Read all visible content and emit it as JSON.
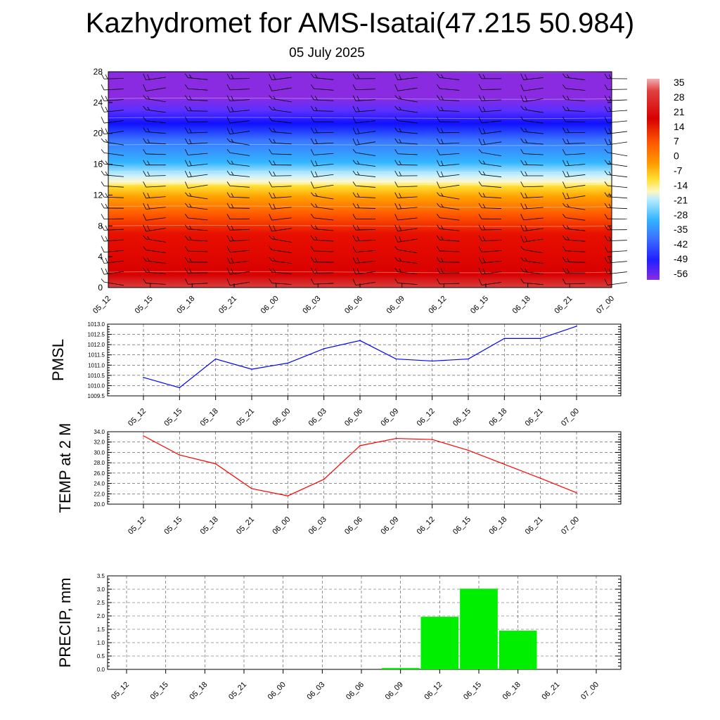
{
  "title": "Kazhydromet for AMS-Isatai(47.215 50.984)",
  "subtitle": "05 July 2025",
  "time_labels": [
    "05_12",
    "05_15",
    "05_18",
    "05_21",
    "06_00",
    "06_03",
    "06_06",
    "06_09",
    "06_12",
    "06_15",
    "06_18",
    "06_21",
    "07_00"
  ],
  "chart_data": [
    {
      "type": "heatmap",
      "id": "vertical-temperature",
      "x": [
        "05_12",
        "05_15",
        "05_18",
        "05_21",
        "06_00",
        "06_03",
        "06_06",
        "06_09",
        "06_12",
        "06_15",
        "06_18",
        "06_21",
        "07_00"
      ],
      "ylim": [
        0,
        28
      ],
      "yticks": [
        "0",
        "4",
        "8",
        "12",
        "16",
        "20",
        "24",
        "28"
      ],
      "colorbar_labels": [
        "35",
        "28",
        "21",
        "14",
        "7",
        "0",
        "-7",
        "-14",
        "-21",
        "-28",
        "-35",
        "-42",
        "-49",
        "-56"
      ],
      "colorbar_range": [
        -63,
        39
      ],
      "colors": {
        "hot": "#d40000",
        "orange": "#ff7a00",
        "yellow": "#ffe033",
        "cyan": "#33b5ff",
        "blue": "#2020ff",
        "violet": "#8a2be2"
      },
      "bands": [
        {
          "from": 0,
          "to": 2,
          "value": 33
        },
        {
          "from": 2,
          "to": 8,
          "value": 24
        },
        {
          "from": 8,
          "to": 10.5,
          "value": 12
        },
        {
          "from": 10.5,
          "to": 13.4,
          "value": 0
        },
        {
          "from": 13.4,
          "to": 15,
          "value": -16
        },
        {
          "from": 15,
          "to": 18.5,
          "value": -30
        },
        {
          "from": 18.5,
          "to": 22,
          "value": -48
        },
        {
          "from": 22,
          "to": 24.5,
          "value": -58
        },
        {
          "from": 24.5,
          "to": 28,
          "value": -63
        }
      ],
      "wind_barbs": true
    },
    {
      "type": "line",
      "id": "pmsl",
      "ylabel": "PMSL",
      "x": [
        "05_12",
        "05_15",
        "05_18",
        "05_21",
        "06_00",
        "06_03",
        "06_06",
        "06_09",
        "06_12",
        "06_15",
        "06_18",
        "06_21",
        "07_00"
      ],
      "values": [
        1010.4,
        1009.9,
        1011.3,
        1010.8,
        1011.1,
        1011.8,
        1012.2,
        1011.3,
        1011.2,
        1011.3,
        1012.3,
        1012.3,
        1012.9
      ],
      "ylim": [
        1009.5,
        1013.0
      ],
      "yticks": [
        "1009.5",
        "1010.0",
        "1010.5",
        "1011.0",
        "1011.5",
        "1012.0",
        "1012.5",
        "1013.0"
      ],
      "color": "#0000ff",
      "grid": true
    },
    {
      "type": "line",
      "id": "temp2m",
      "ylabel": "TEMP at 2 M",
      "x": [
        "05_12",
        "05_15",
        "05_18",
        "05_21",
        "06_00",
        "06_03",
        "06_06",
        "06_09",
        "06_12",
        "06_15",
        "06_18",
        "06_21",
        "07_00"
      ],
      "values": [
        33.2,
        29.5,
        27.8,
        23.0,
        21.6,
        24.8,
        31.3,
        32.7,
        32.5,
        30.4,
        27.7,
        25.0,
        22.2
      ],
      "ylim": [
        20.0,
        34.0
      ],
      "yticks": [
        "20.0",
        "22.0",
        "24.0",
        "26.0",
        "28.0",
        "30.0",
        "32.0",
        "34.0"
      ],
      "color": "#ff0000",
      "grid": true
    },
    {
      "type": "bar",
      "id": "precip",
      "ylabel": "PRECIP, mm",
      "categories": [
        "05_12",
        "05_15",
        "05_18",
        "05_21",
        "06_00",
        "06_03",
        "06_06",
        "06_09",
        "06_12",
        "06_15",
        "06_18",
        "06_21",
        "07_00"
      ],
      "values": [
        0,
        0,
        0,
        0,
        0,
        0,
        0,
        0.05,
        1.97,
        3.02,
        1.45,
        0,
        0
      ],
      "ylim": [
        0,
        3.5
      ],
      "yticks": [
        "0.0",
        "0.5",
        "1.0",
        "1.5",
        "2.0",
        "2.5",
        "3.0",
        "3.5"
      ],
      "color": "#00ee00",
      "grid": true
    }
  ]
}
